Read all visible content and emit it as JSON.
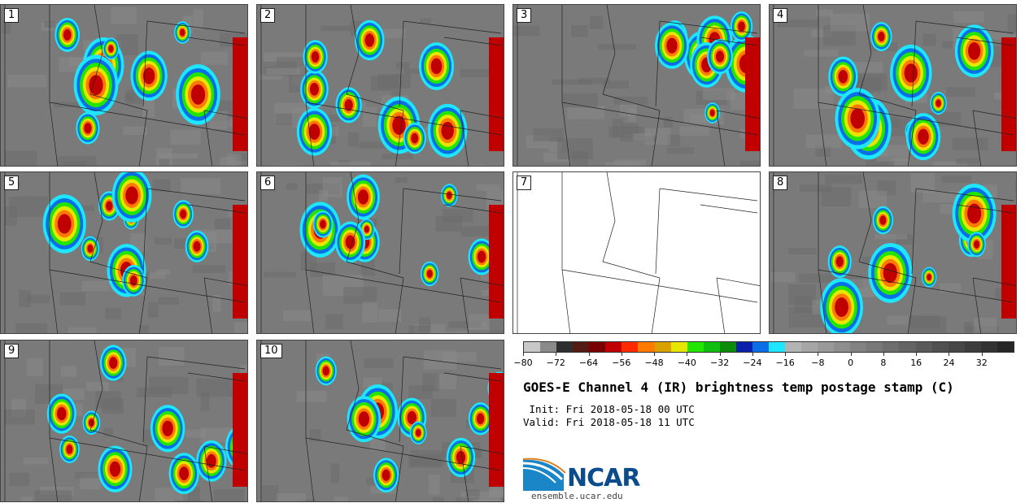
{
  "panels": [
    {
      "label": "1"
    },
    {
      "label": "2"
    },
    {
      "label": "3"
    },
    {
      "label": "4"
    },
    {
      "label": "5"
    },
    {
      "label": "6"
    },
    {
      "label": "7"
    },
    {
      "label": "8"
    },
    {
      "label": "9"
    },
    {
      "label": "10"
    }
  ],
  "colorbar": {
    "ticks": [
      "−80",
      "−72",
      "−64",
      "−56",
      "−48",
      "−40",
      "−32",
      "−24",
      "−16",
      "−8",
      "0",
      "8",
      "16",
      "24",
      "32"
    ],
    "colors": [
      "#c8c8c8",
      "#8a8a8a",
      "#2e2e2e",
      "#551a14",
      "#7a0000",
      "#c00000",
      "#ff2a00",
      "#ff7a00",
      "#d9a200",
      "#e6e600",
      "#22e600",
      "#0fbf0f",
      "#0a8c0a",
      "#0a1faa",
      "#0a6ee6",
      "#1ee6ff",
      "#b4b4b4",
      "#a6a6a6",
      "#9a9a9a",
      "#8e8e8e",
      "#828282",
      "#787878",
      "#6e6e6e",
      "#646464",
      "#5a5a5a",
      "#505050",
      "#464646",
      "#3c3c3c",
      "#323232",
      "#262626"
    ]
  },
  "title": "GOES-E Channel 4 (IR) brightness temp postage stamp (C)",
  "init_text": " Init: Fri 2018-05-18 00 UTC",
  "valid_text": "Valid: Fri 2018-05-18 11 UTC",
  "logo": {
    "text": "NCAR",
    "url": "ensemble.ucar.edu",
    "colors": [
      "#0b4d8c",
      "#1a86c8"
    ]
  },
  "map_colors": {
    "background": "#7a7a7a",
    "cold_red": "#c00000",
    "orange": "#ff7a00",
    "yellow": "#e6e600",
    "green": "#22e600",
    "blue": "#0a6ee6",
    "cyan": "#1ee6ff"
  }
}
